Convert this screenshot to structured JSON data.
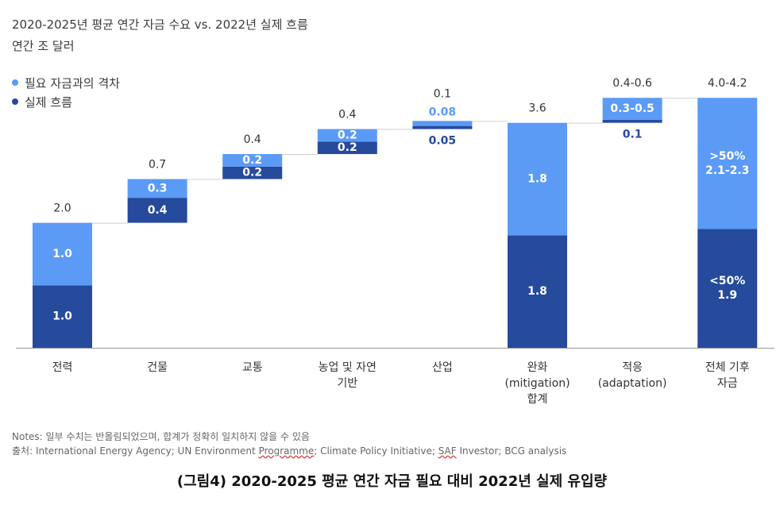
{
  "title": "2020-2025년 평균 연간 자금 수요 vs. 2022년 실제 흐름",
  "subtitle": "연간 조 달러",
  "legend": [
    {
      "label": "필요 자금과의 격차",
      "color": "#5b9bf6"
    },
    {
      "label": "실제 흐름",
      "color": "#264a9c"
    }
  ],
  "colors": {
    "gap": "#5b9bf6",
    "actual": "#264a9c",
    "connector": "#cfcfcf",
    "axis": "#999999"
  },
  "chart_data": {
    "type": "bar",
    "subtype": "waterfall-stacked",
    "title": "2020-2025년 평균 연간 자금 수요 vs. 2022년 실제 흐름",
    "ylabel": "연간 조 달러",
    "categories": [
      [
        "전력"
      ],
      [
        "건물"
      ],
      [
        "교통"
      ],
      [
        "농업 및 자연",
        "기반"
      ],
      [
        "산업"
      ],
      [
        "완화",
        "(mitigation)",
        "합계"
      ],
      [
        "적응",
        "(adaptation)"
      ],
      [
        "전체 기후",
        "자금"
      ]
    ],
    "bars": [
      {
        "kind": "float",
        "base": 0.0,
        "actual": 1.0,
        "gap": 1.0,
        "total_label": "2.0",
        "actual_label": "1.0",
        "gap_label": "1.0"
      },
      {
        "kind": "float",
        "base": 2.0,
        "actual": 0.4,
        "gap": 0.3,
        "total_label": "0.7",
        "actual_label": "0.4",
        "gap_label": "0.3"
      },
      {
        "kind": "float",
        "base": 2.7,
        "actual": 0.2,
        "gap": 0.2,
        "total_label": "0.4",
        "actual_label": "0.2",
        "gap_label": "0.2"
      },
      {
        "kind": "float",
        "base": 3.1,
        "actual": 0.2,
        "gap": 0.2,
        "total_label": "0.4",
        "actual_label": "0.2",
        "gap_label": "0.2"
      },
      {
        "kind": "float",
        "base": 3.5,
        "actual": 0.05,
        "gap": 0.08,
        "total_label": "0.1",
        "actual_label": "0.05",
        "gap_label": "0.08"
      },
      {
        "kind": "total",
        "base": 0.0,
        "actual": 1.8,
        "gap": 1.8,
        "total_label": "3.6",
        "actual_label": "1.8",
        "gap_label": "1.8"
      },
      {
        "kind": "float",
        "base": 3.6,
        "actual": 0.05,
        "gap": 0.35,
        "total_label": "0.4-0.6",
        "actual_label": "0.1",
        "gap_label": "0.3-0.5"
      },
      {
        "kind": "total",
        "base": 0.0,
        "actual": 1.9,
        "gap": 2.1,
        "total_label": "4.0-4.2",
        "actual_label": "<50%\n1.9",
        "gap_label": ">50%\n2.1-2.3"
      }
    ],
    "ylim": [
      0,
      4.0
    ]
  },
  "notes": "Notes: 일부 수치는 반올림되었으며, 합계가 정확히 일치하지 않을 수 있음",
  "source_prefix": "출처: International Energy Agency; UN Environment ",
  "source_wavy1": "Programme",
  "source_mid": "; Climate Policy Initiative; ",
  "source_wavy2": "SAF",
  "source_suffix": " Investor; BCG analysis",
  "caption": "(그림4) 2020-2025 평균 연간 자금 필요 대비 2022년 실제 유입량"
}
